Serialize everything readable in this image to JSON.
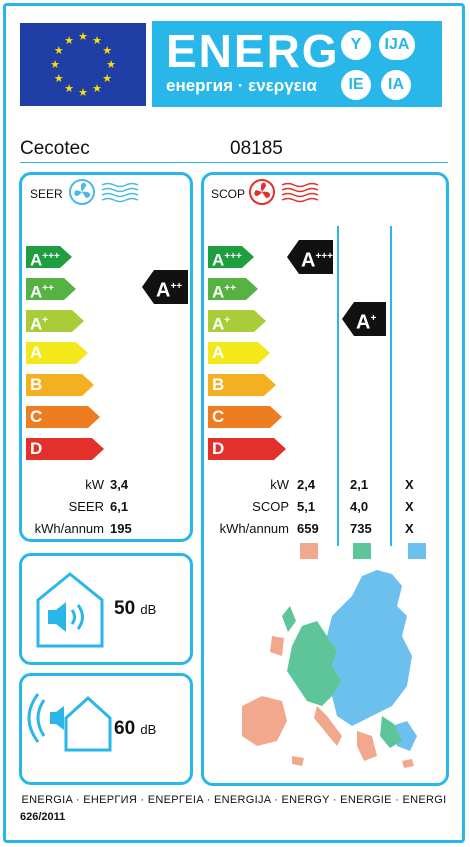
{
  "header": {
    "energy_word": "ENERG",
    "energy_sub": "енергия · ενεργεια",
    "badges": [
      "Y",
      "IJA",
      "IE",
      "IA"
    ],
    "eu_flag_icon": "eu-flag-icon"
  },
  "supplier": {
    "brand": "Cecotec",
    "model": "08185"
  },
  "seer": {
    "label": "SEER",
    "icon": "cooling-fan-icon",
    "scale": [
      {
        "letter": "A",
        "plus": "+++",
        "color": "#1e9e3e"
      },
      {
        "letter": "A",
        "plus": "++",
        "color": "#56b343"
      },
      {
        "letter": "A",
        "plus": "+",
        "color": "#a8cd38"
      },
      {
        "letter": "A",
        "plus": "",
        "color": "#f2e81c"
      },
      {
        "letter": "B",
        "plus": "",
        "color": "#f5b021"
      },
      {
        "letter": "C",
        "plus": "",
        "color": "#ee7d22"
      },
      {
        "letter": "D",
        "plus": "",
        "color": "#e4302a"
      }
    ],
    "rating": {
      "letter": "A",
      "plus": "++"
    },
    "stats": [
      {
        "label": "kW",
        "value": "3,4"
      },
      {
        "label": "SEER",
        "value": "6,1"
      },
      {
        "label": "kWh/annum",
        "value": "195"
      }
    ]
  },
  "scop": {
    "label": "SCOP",
    "icon": "heating-fan-icon",
    "ratings": [
      {
        "letter": "A",
        "plus": "+++"
      },
      {
        "letter": "A",
        "plus": "+"
      }
    ],
    "stats_labels": [
      "kW",
      "SCOP",
      "kWh/annum"
    ],
    "columns": [
      {
        "values": [
          "2,4",
          "5,1",
          "659"
        ],
        "color": "#f2a88c"
      },
      {
        "values": [
          "2,1",
          "4,0",
          "735"
        ],
        "color": "#5ec49a"
      },
      {
        "values": [
          "X",
          "X",
          "X"
        ],
        "color": "#6cc0ee"
      }
    ]
  },
  "noise": {
    "indoor": {
      "value": "50",
      "unit": "dB",
      "icon": "indoor-speaker-icon"
    },
    "outdoor": {
      "value": "60",
      "unit": "dB",
      "icon": "outdoor-speaker-icon"
    }
  },
  "footer": {
    "languages": "ENERGIA · ЕНЕРГИЯ · ΕΝΕΡΓΕΙΑ · ENERGIJA · ENERGY · ENERGIE · ENERGI",
    "regulation": "626/2011"
  }
}
